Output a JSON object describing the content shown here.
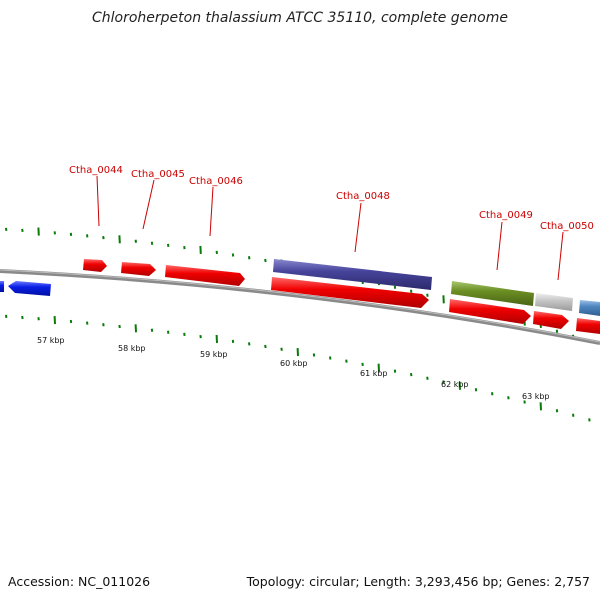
{
  "title": "Chloroherpeton thalassium ATCC 35110, complete genome",
  "footer": {
    "accession": "Accession: NC_011026",
    "summary": "Topology: circular; Length: 3,293,456 bp; Genes: 2,757"
  },
  "scale_labels": [
    "57 kbp",
    "58 kbp",
    "59 kbp",
    "60 kbp",
    "61 kbp",
    "62 kbp",
    "63 kbp"
  ],
  "gene_labels": [
    "Ctha_0044",
    "Ctha_0045",
    "Ctha_0046",
    "Ctha_0048",
    "Ctha_0049",
    "Ctha_0050"
  ],
  "colors": {
    "cds": "#e60000",
    "reverse_cds": "#0a1ee6",
    "purple_track": "#46449a",
    "olive_track": "#6b8e23",
    "gray_track": "#c8c8c8",
    "steelblue_track": "#4f86c0",
    "tick": "#0a7a0a",
    "backbone": "#888888",
    "label": "#cc0000"
  }
}
